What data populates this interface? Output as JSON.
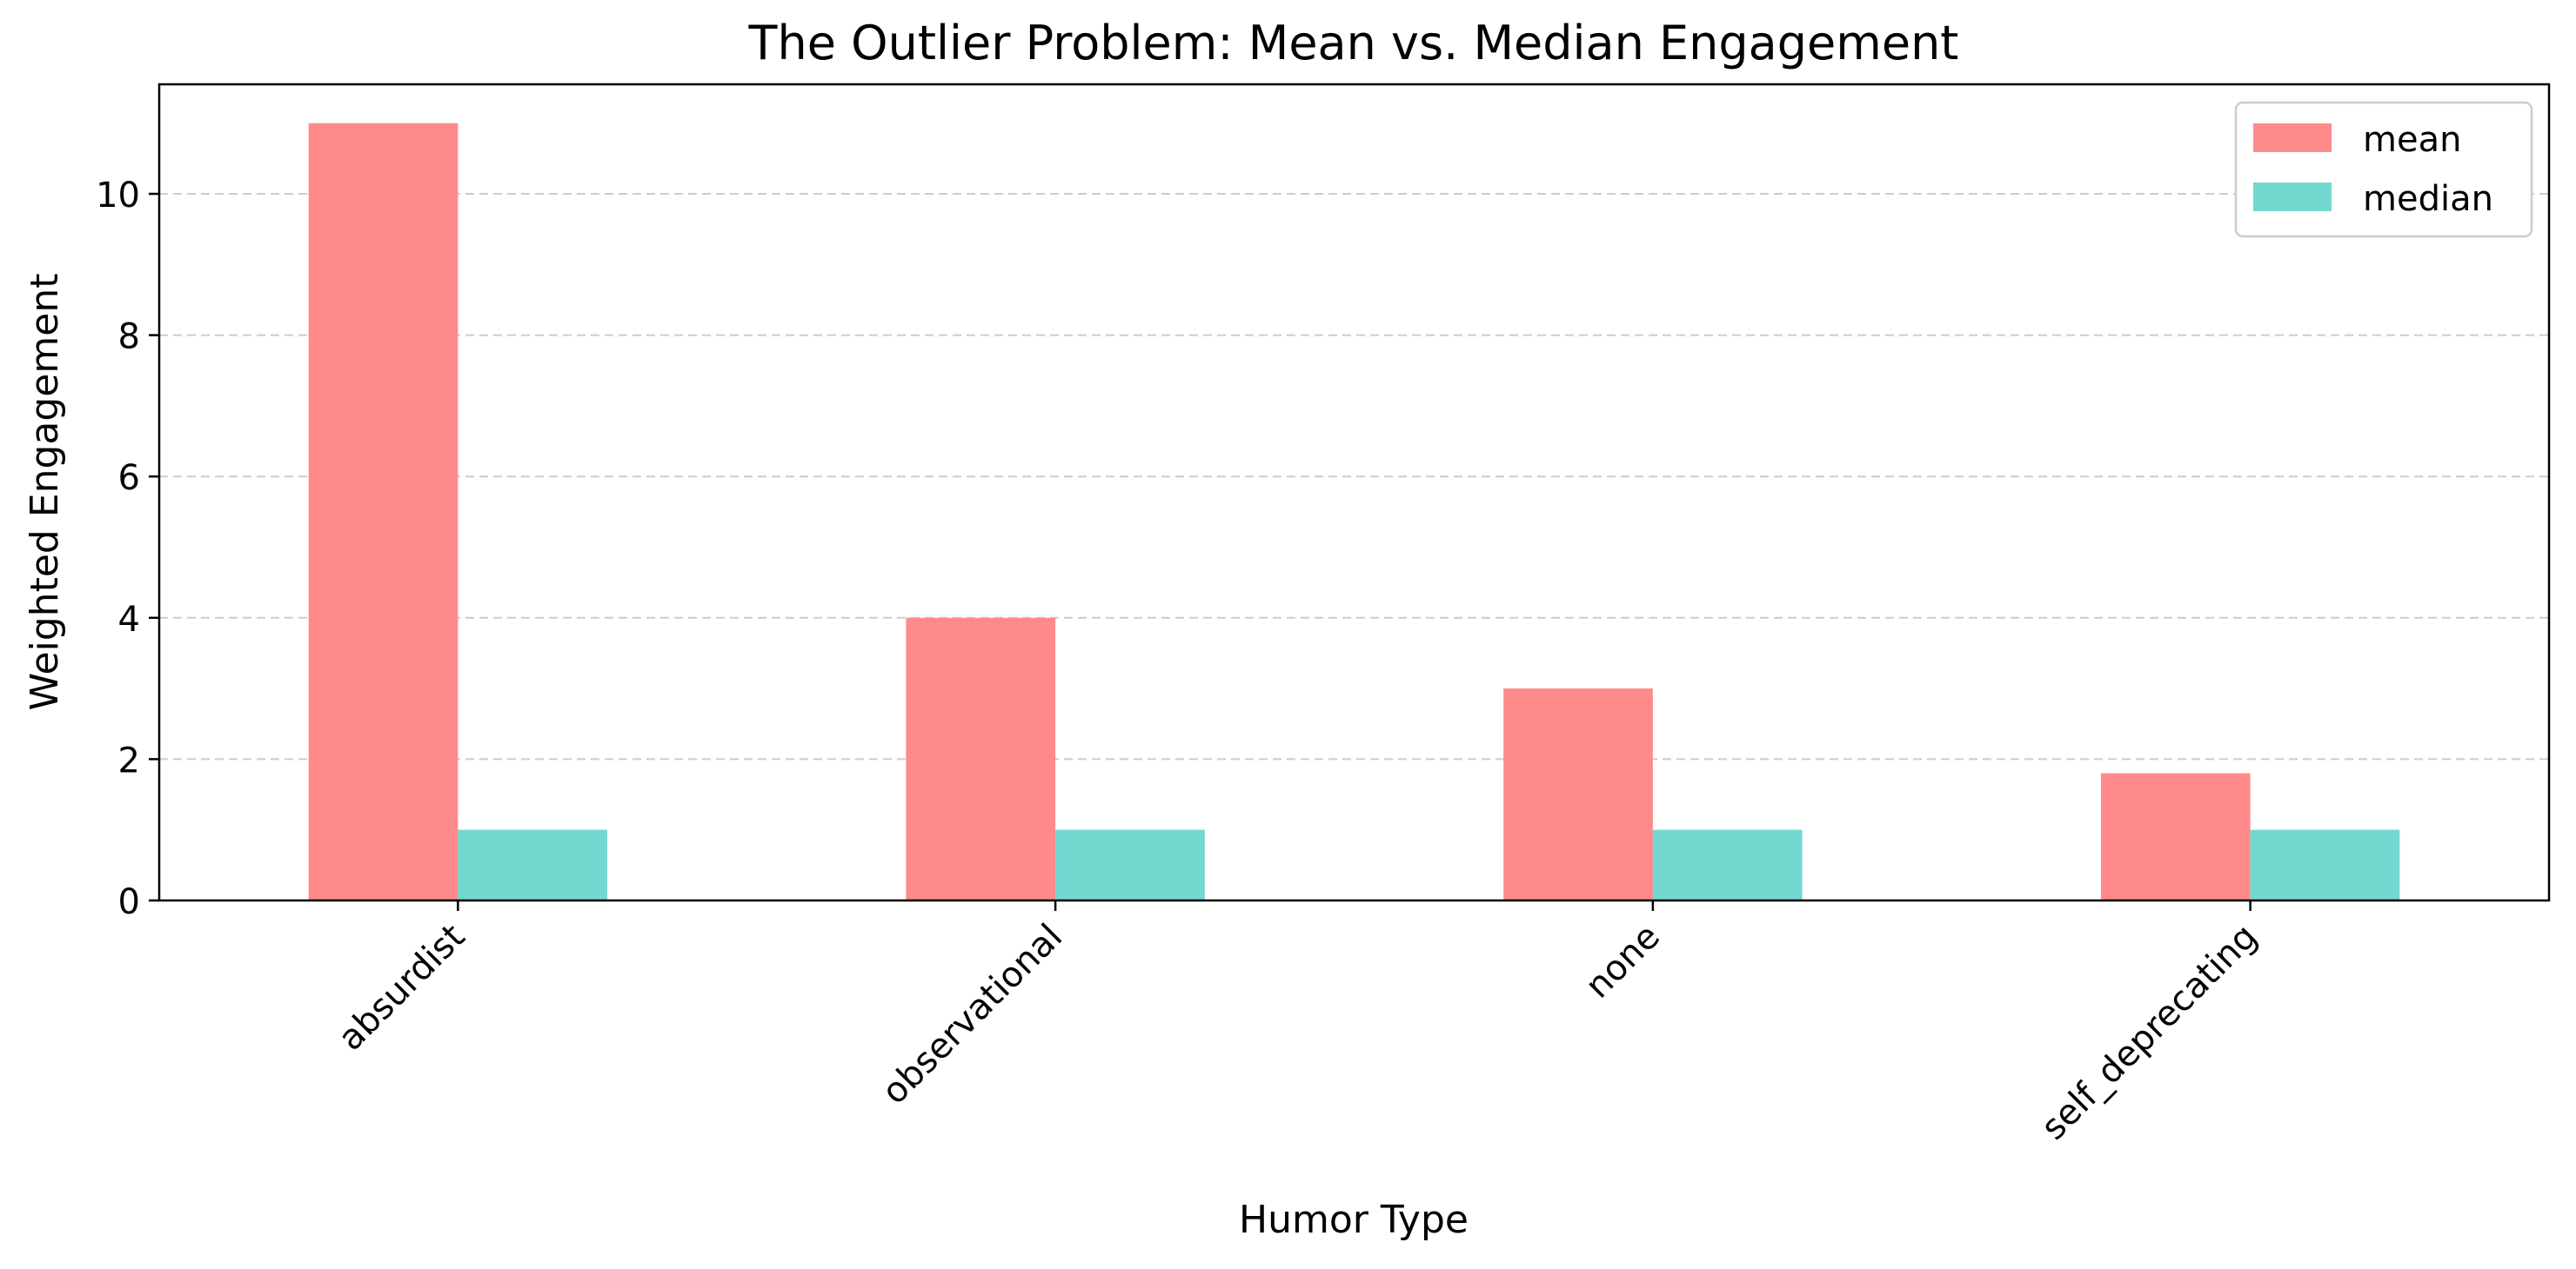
{
  "chart_data": {
    "type": "bar",
    "title": "The Outlier Problem: Mean vs. Median Engagement",
    "xlabel": "Humor Type",
    "ylabel": "Weighted Engagement",
    "categories": [
      "absurdist",
      "observational",
      "none",
      "self_deprecating"
    ],
    "series": [
      {
        "name": "mean",
        "values": [
          11.0,
          4.0,
          3.0,
          1.8
        ],
        "color": "#FF8A8A"
      },
      {
        "name": "median",
        "values": [
          1.0,
          1.0,
          1.0,
          1.0
        ],
        "color": "#72D8D0"
      }
    ],
    "ylim": [
      0,
      11.55
    ],
    "yticks": [
      0,
      2,
      4,
      6,
      8,
      10
    ],
    "grid": "horizontal-dashed",
    "legend_position": "top-right"
  }
}
